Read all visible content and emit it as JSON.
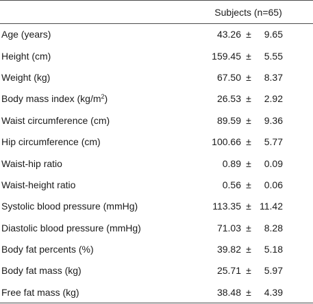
{
  "table": {
    "header": {
      "col1": "",
      "col2": "Subjects (n=65)"
    },
    "pm_symbol": "±",
    "rows": [
      {
        "label": "Age (years)",
        "mean": "43.26",
        "sd": "9.65"
      },
      {
        "label": "Height (cm)",
        "mean": "159.45",
        "sd": "5.55"
      },
      {
        "label": "Weight (kg)",
        "mean": "67.50",
        "sd": "8.37"
      },
      {
        "label": "Body mass index (kg/m",
        "label_sup": "2",
        "label_tail": ")",
        "mean": "26.53",
        "sd": "2.92"
      },
      {
        "label": "Waist circumference (cm)",
        "mean": "89.59",
        "sd": "9.36"
      },
      {
        "label": "Hip circumference (cm)",
        "mean": "100.66",
        "sd": "5.77"
      },
      {
        "label": "Waist-hip ratio",
        "mean": "0.89",
        "sd": "0.09"
      },
      {
        "label": "Waist-height ratio",
        "mean": "0.56",
        "sd": "0.06"
      },
      {
        "label": "Systolic blood pressure (mmHg)",
        "mean": "113.35",
        "sd": "11.42"
      },
      {
        "label": "Diastolic blood pressure (mmHg)",
        "mean": "71.03",
        "sd": "8.28"
      },
      {
        "label": "Body fat percents (%)",
        "mean": "39.82",
        "sd": "5.18"
      },
      {
        "label": "Body fat mass (kg)",
        "mean": "25.71",
        "sd": "5.97"
      },
      {
        "label": "Free fat mass (kg)",
        "mean": "38.48",
        "sd": "4.39"
      }
    ]
  }
}
